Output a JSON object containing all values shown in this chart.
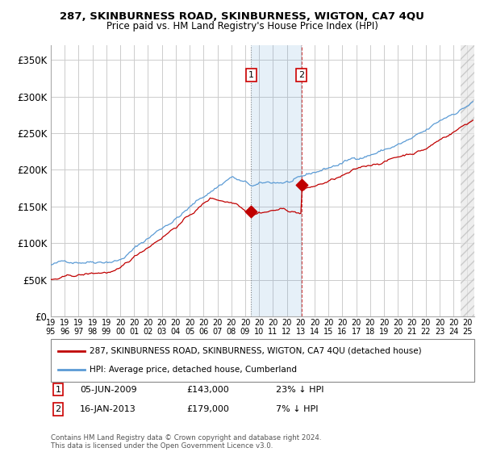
{
  "title": "287, SKINBURNESS ROAD, SKINBURNESS, WIGTON, CA7 4QU",
  "subtitle": "Price paid vs. HM Land Registry's House Price Index (HPI)",
  "xlim_start": 1995.0,
  "xlim_end": 2025.5,
  "ylim": [
    0,
    370000
  ],
  "yticks": [
    0,
    50000,
    100000,
    150000,
    200000,
    250000,
    300000,
    350000
  ],
  "ytick_labels": [
    "£0",
    "£50K",
    "£100K",
    "£150K",
    "£200K",
    "£250K",
    "£300K",
    "£350K"
  ],
  "sale1_date_num": 2009.43,
  "sale1_price": 143000,
  "sale1_label": "1",
  "sale1_date_str": "05-JUN-2009",
  "sale1_price_str": "£143,000",
  "sale1_pct": "23% ↓ HPI",
  "sale2_date_num": 2013.04,
  "sale2_price": 179000,
  "sale2_label": "2",
  "sale2_date_str": "16-JAN-2013",
  "sale2_price_str": "£179,000",
  "sale2_pct": "7% ↓ HPI",
  "shaded_start": 2009.43,
  "shaded_end": 2013.04,
  "hpi_color": "#5b9bd5",
  "price_color": "#c00000",
  "background_color": "#ffffff",
  "plot_bg_color": "#ffffff",
  "grid_color": "#cccccc",
  "legend_label_price": "287, SKINBURNESS ROAD, SKINBURNESS, WIGTON, CA7 4QU (detached house)",
  "legend_label_hpi": "HPI: Average price, detached house, Cumberland",
  "footer": "Contains HM Land Registry data © Crown copyright and database right 2024.\nThis data is licensed under the Open Government Licence v3.0.",
  "future_cutoff": 2024.5
}
